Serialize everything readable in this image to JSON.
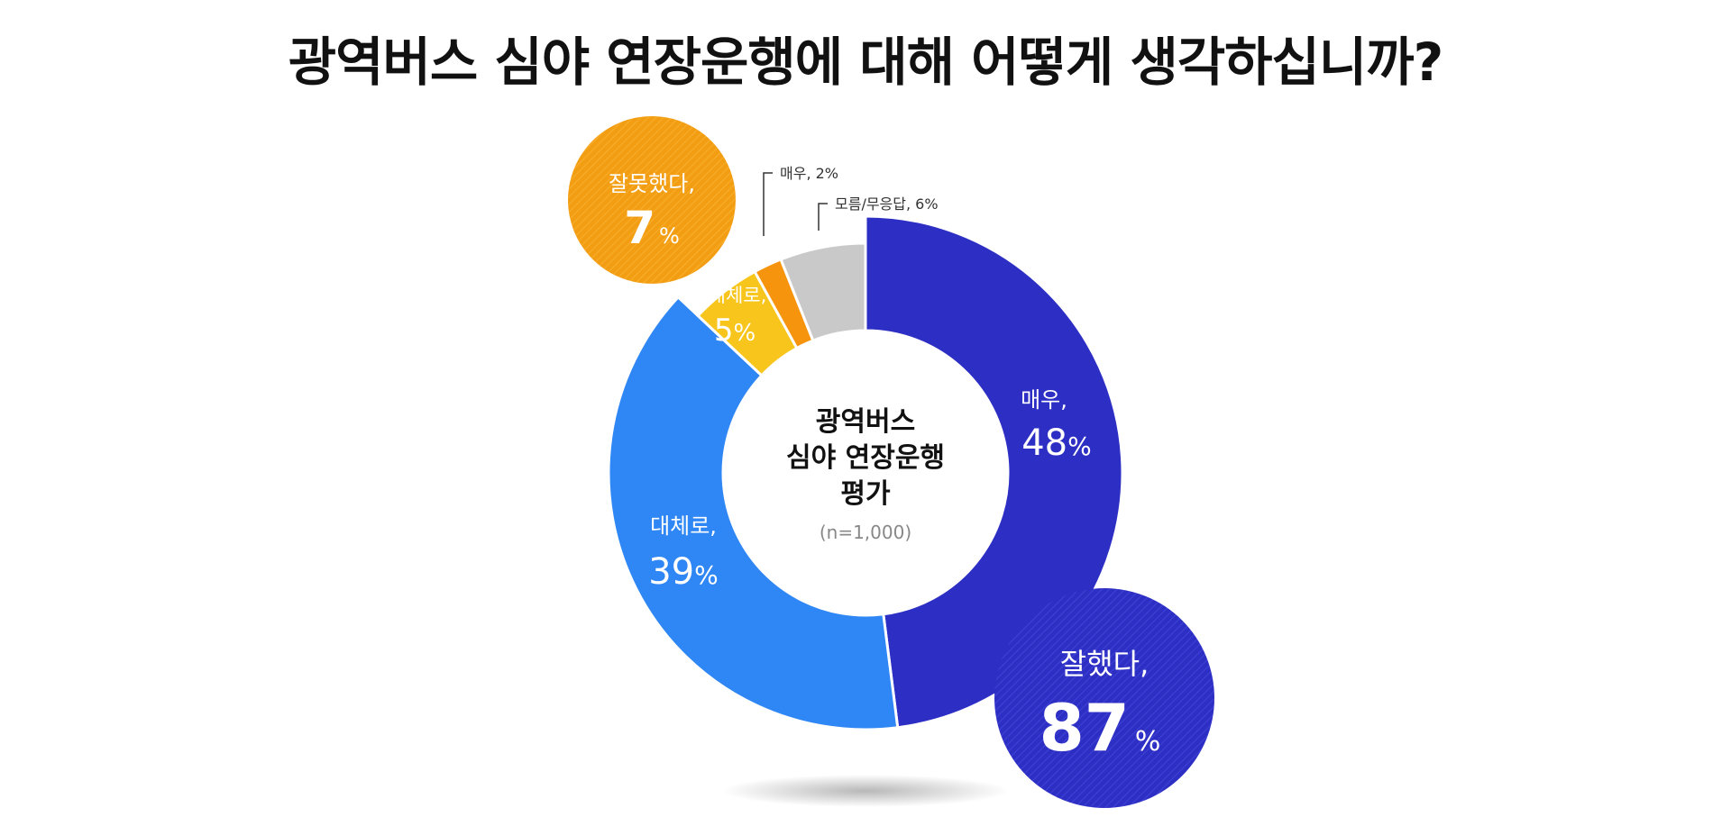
{
  "title": "광역버스 심야 연장운행에 대해 어떻게 생각하십니까?",
  "center": {
    "line1": "광역버스",
    "line2": "심야 연장운행",
    "line3": "평가",
    "n": "(n=1,000)"
  },
  "chart_data": {
    "type": "pie",
    "title": "광역버스 심야 연장운행에 대해 어떻게 생각하십니까?",
    "slices": [
      {
        "group": "잘했다",
        "label": "매우,",
        "value": 48,
        "value_text": "48",
        "color": "#2d2fc4"
      },
      {
        "group": "잘했다",
        "label": "대체로,",
        "value": 39,
        "value_text": "39",
        "color": "#2f86f5"
      },
      {
        "group": "잘못했다",
        "label": "대체로,",
        "value": 5,
        "value_text": "5",
        "color": "#f7c51b"
      },
      {
        "group": "잘못했다",
        "label": "매우, 2%",
        "value": 2,
        "value_text": "",
        "color": "#f7940e"
      },
      {
        "group": "",
        "label": "모름/무응답, 6%",
        "value": 6,
        "value_text": "",
        "color": "#c9c9c9"
      }
    ],
    "groups": [
      {
        "label": "잘했다,",
        "value": 87,
        "value_text": "87",
        "unit": "%",
        "color": "#2d2fc4"
      },
      {
        "label": "잘못했다,",
        "value": 7,
        "value_text": "7",
        "unit": "%",
        "color": "#f29d12"
      }
    ],
    "percent_sign": "%"
  }
}
